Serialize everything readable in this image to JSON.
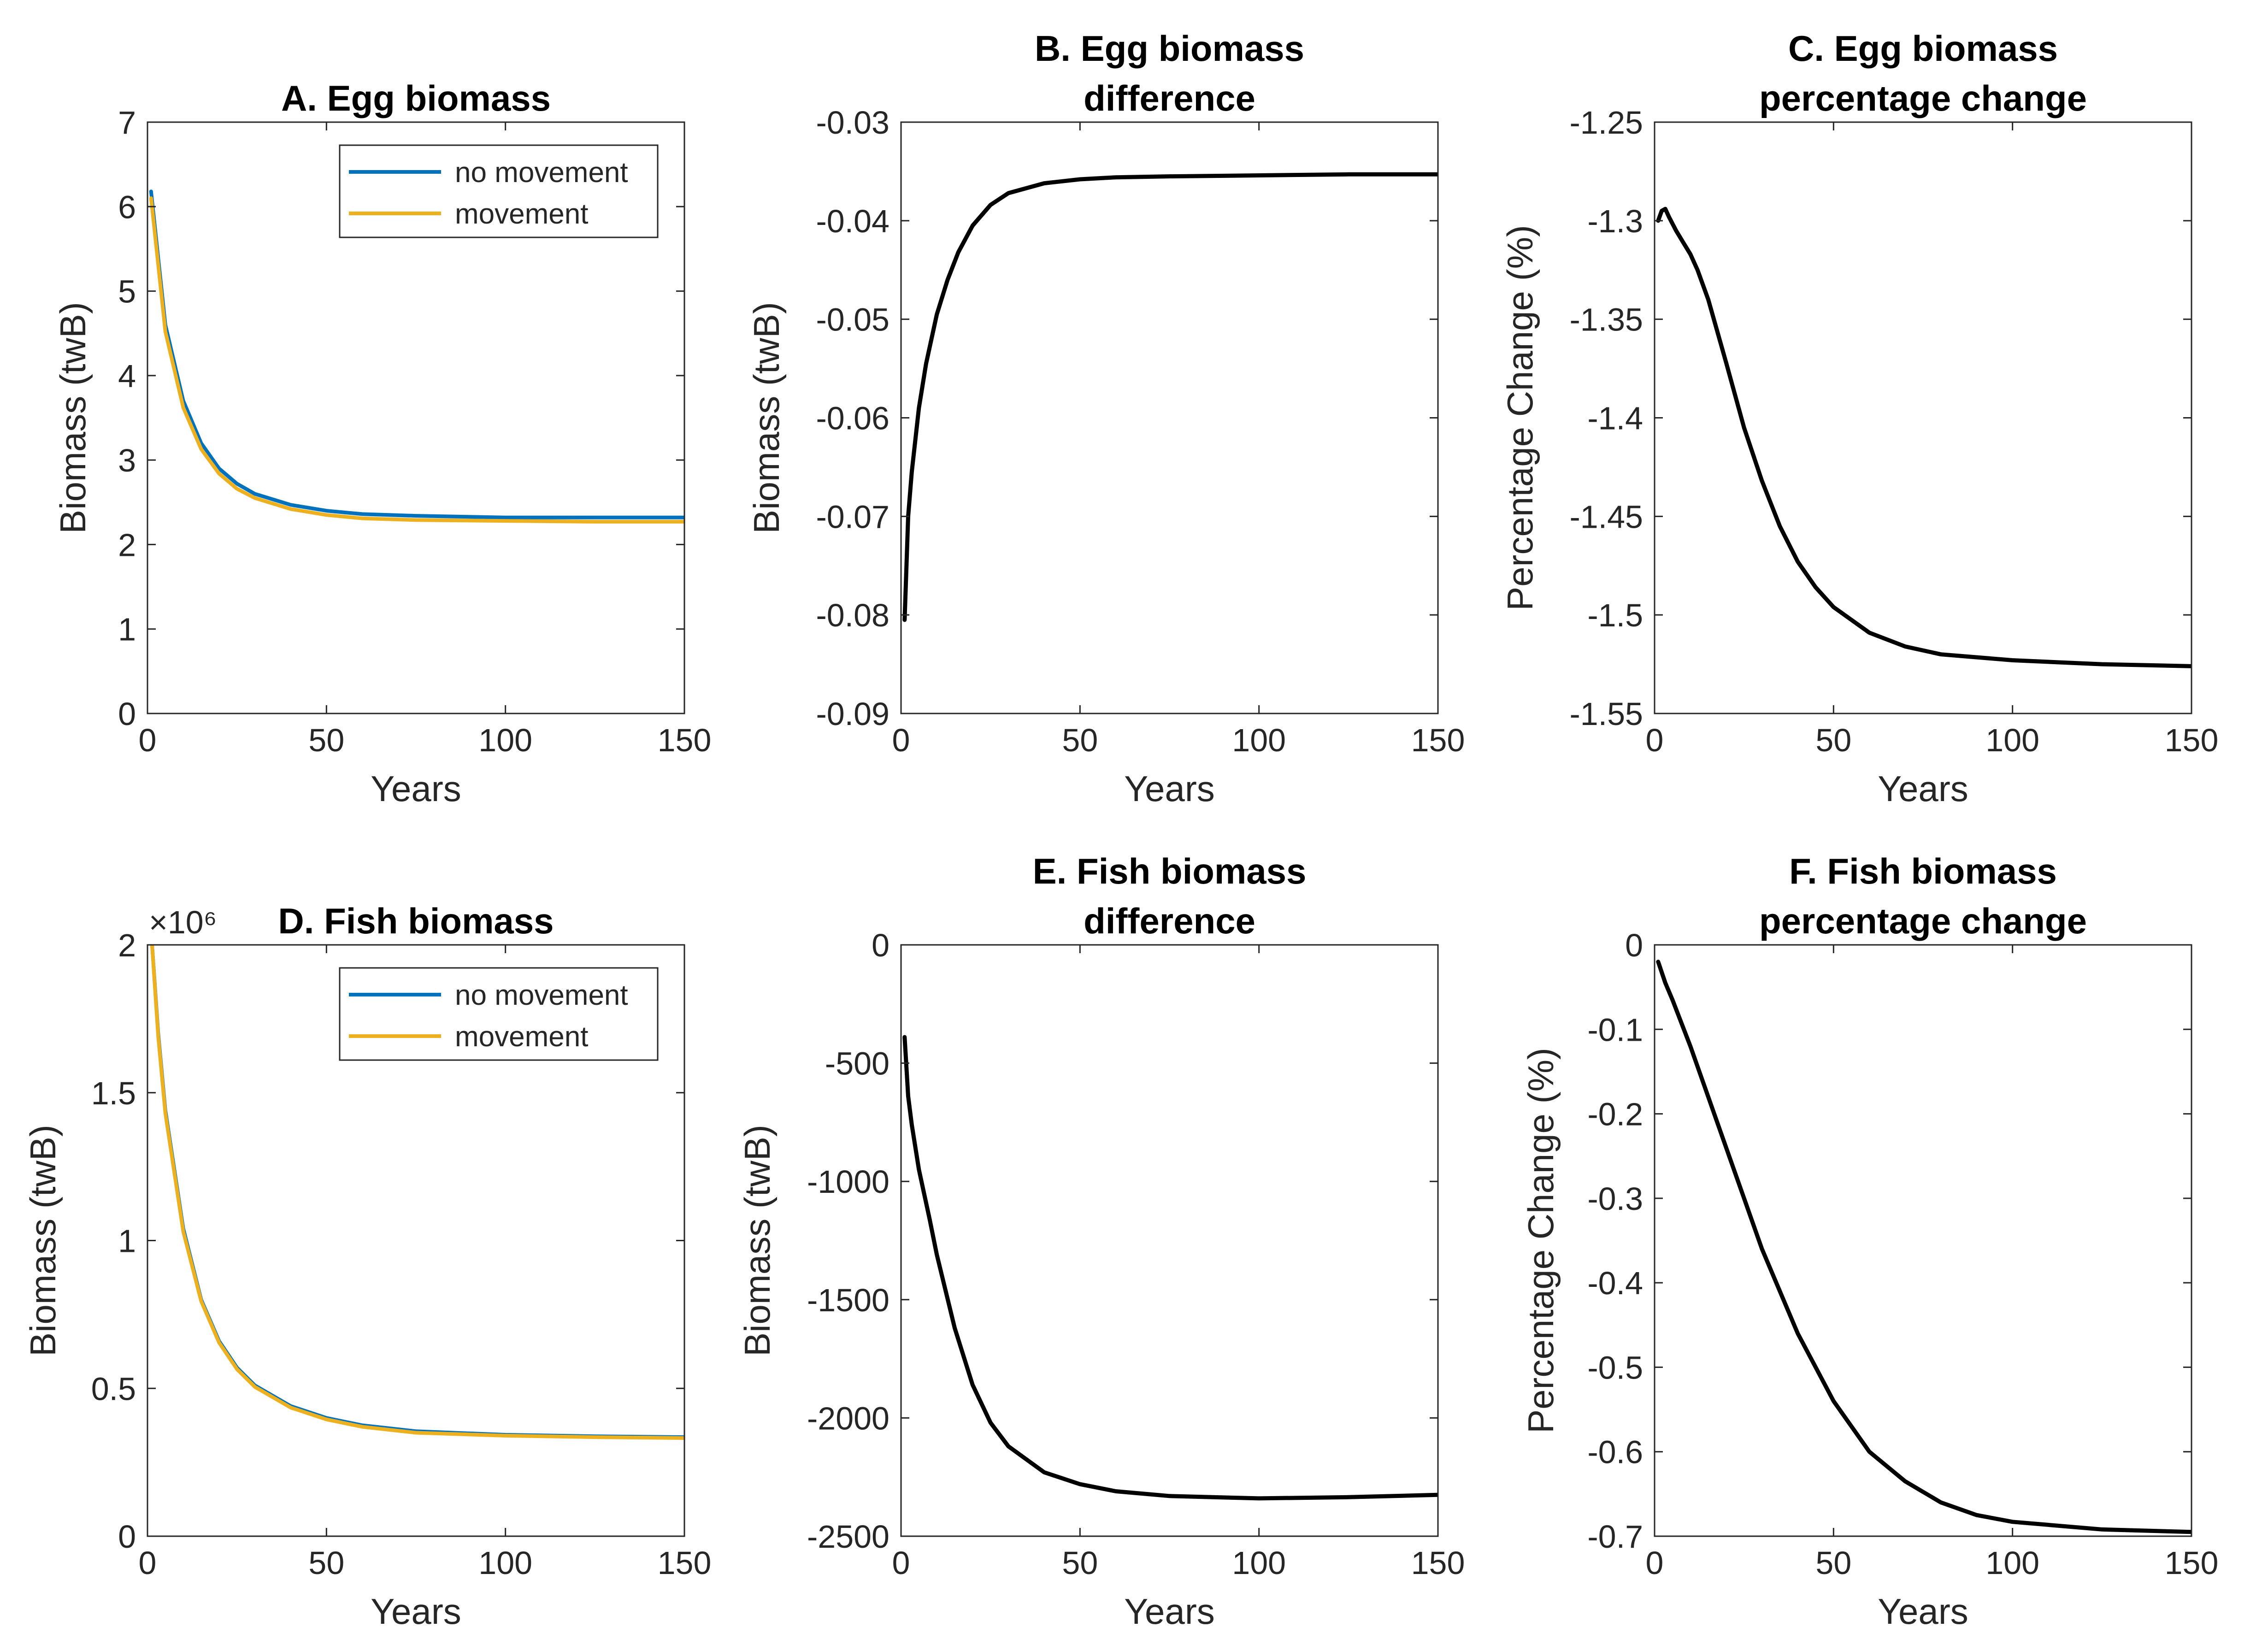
{
  "figure": {
    "panels": [
      {
        "id": "A",
        "title_lines": [
          "A. Egg biomass"
        ],
        "xlabel": "Years",
        "ylabel": "Biomass (twB)",
        "exponent": "",
        "xlim": [
          0,
          150
        ],
        "ylim": [
          0,
          7
        ],
        "xticks": [
          0,
          50,
          100,
          150
        ],
        "xtick_labels": [
          "0",
          "50",
          "100",
          "150"
        ],
        "yticks": [
          0,
          1,
          2,
          3,
          4,
          5,
          6,
          7
        ],
        "ytick_labels": [
          "0",
          "1",
          "2",
          "3",
          "4",
          "5",
          "6",
          "7"
        ],
        "legend": {
          "position": "top-right",
          "entries": [
            "no movement",
            "movement"
          ]
        },
        "series": [
          {
            "name": "no movement",
            "color": "#0072BD",
            "x": [
              1,
              5,
              10,
              15,
              20,
              25,
              30,
              40,
              50,
              60,
              75,
              100,
              125,
              150
            ],
            "y": [
              6.18,
              4.6,
              3.7,
              3.2,
              2.9,
              2.72,
              2.6,
              2.47,
              2.4,
              2.36,
              2.34,
              2.32,
              2.32,
              2.32
            ]
          },
          {
            "name": "movement",
            "color": "#EDB120",
            "x": [
              1,
              5,
              10,
              15,
              20,
              25,
              30,
              40,
              50,
              60,
              75,
              100,
              125,
              150
            ],
            "y": [
              6.1,
              4.52,
              3.62,
              3.13,
              2.84,
              2.66,
              2.55,
              2.42,
              2.35,
              2.31,
              2.29,
              2.28,
              2.27,
              2.27
            ]
          }
        ]
      },
      {
        "id": "B",
        "title_lines": [
          "B. Egg biomass",
          "difference"
        ],
        "xlabel": "Years",
        "ylabel": "Biomass (twB)",
        "exponent": "",
        "xlim": [
          0,
          150
        ],
        "ylim": [
          -0.09,
          -0.03
        ],
        "xticks": [
          0,
          50,
          100,
          150
        ],
        "xtick_labels": [
          "0",
          "50",
          "100",
          "150"
        ],
        "yticks": [
          -0.09,
          -0.08,
          -0.07,
          -0.06,
          -0.05,
          -0.04,
          -0.03
        ],
        "ytick_labels": [
          "-0.09",
          "-0.08",
          "-0.07",
          "-0.06",
          "-0.05",
          "-0.04",
          "-0.03"
        ],
        "series": [
          {
            "name": "",
            "color": "#000000",
            "x": [
              1,
              2,
              3,
              5,
              7,
              10,
              13,
              16,
              20,
              25,
              30,
              40,
              50,
              60,
              75,
              100,
              125,
              150
            ],
            "y": [
              -0.0805,
              -0.07,
              -0.0655,
              -0.059,
              -0.0545,
              -0.0495,
              -0.046,
              -0.0432,
              -0.0405,
              -0.0384,
              -0.0372,
              -0.0362,
              -0.0358,
              -0.0356,
              -0.0355,
              -0.0354,
              -0.0353,
              -0.0353
            ]
          }
        ]
      },
      {
        "id": "C",
        "title_lines": [
          "C. Egg biomass",
          "percentage change"
        ],
        "xlabel": "Years",
        "ylabel": "Percentage Change (%)",
        "exponent": "",
        "xlim": [
          0,
          150
        ],
        "ylim": [
          -1.55,
          -1.25
        ],
        "xticks": [
          0,
          50,
          100,
          150
        ],
        "xtick_labels": [
          "0",
          "50",
          "100",
          "150"
        ],
        "yticks": [
          -1.55,
          -1.5,
          -1.45,
          -1.4,
          -1.35,
          -1.3,
          -1.25
        ],
        "ytick_labels": [
          "-1.55",
          "-1.5",
          "-1.45",
          "-1.4",
          "-1.35",
          "-1.3",
          "-1.25"
        ],
        "series": [
          {
            "name": "",
            "color": "#000000",
            "x": [
              1,
              2,
              3,
              4,
              6,
              8,
              10,
              12,
              15,
              20,
              25,
              30,
              35,
              40,
              45,
              50,
              60,
              70,
              80,
              100,
              125,
              150
            ],
            "y": [
              -1.3,
              -1.295,
              -1.294,
              -1.298,
              -1.305,
              -1.311,
              -1.317,
              -1.325,
              -1.34,
              -1.372,
              -1.405,
              -1.432,
              -1.455,
              -1.473,
              -1.486,
              -1.496,
              -1.509,
              -1.516,
              -1.52,
              -1.523,
              -1.525,
              -1.526
            ]
          }
        ]
      },
      {
        "id": "D",
        "title_lines": [
          "D. Fish biomass"
        ],
        "xlabel": "Years",
        "ylabel": "Biomass (twB)",
        "exponent": "×10⁶",
        "xlim": [
          0,
          150
        ],
        "ylim": [
          0,
          2.0
        ],
        "xticks": [
          0,
          50,
          100,
          150
        ],
        "xtick_labels": [
          "0",
          "50",
          "100",
          "150"
        ],
        "yticks": [
          0,
          0.5,
          1,
          1.5,
          2
        ],
        "ytick_labels": [
          "0",
          "0.5",
          "1",
          "1.5",
          "2"
        ],
        "legend": {
          "position": "top-right",
          "entries": [
            "no movement",
            "movement"
          ]
        },
        "series": [
          {
            "name": "no movement",
            "color": "#0072BD",
            "x": [
              1,
              3,
              5,
              10,
              15,
              20,
              25,
              30,
              40,
              50,
              60,
              75,
              100,
              125,
              150
            ],
            "y": [
              2.05,
              1.7,
              1.44,
              1.04,
              0.8,
              0.66,
              0.57,
              0.51,
              0.44,
              0.4,
              0.375,
              0.355,
              0.343,
              0.338,
              0.335
            ]
          },
          {
            "name": "movement",
            "color": "#EDB120",
            "x": [
              1,
              3,
              5,
              10,
              15,
              20,
              25,
              30,
              40,
              50,
              60,
              75,
              100,
              125,
              150
            ],
            "y": [
              2.05,
              1.69,
              1.43,
              1.03,
              0.795,
              0.655,
              0.565,
              0.505,
              0.435,
              0.395,
              0.37,
              0.35,
              0.34,
              0.335,
              0.332
            ]
          }
        ]
      },
      {
        "id": "E",
        "title_lines": [
          "E. Fish biomass",
          "difference"
        ],
        "xlabel": "Years",
        "ylabel": "Biomass (twB)",
        "exponent": "",
        "xlim": [
          0,
          150
        ],
        "ylim": [
          -2500,
          0
        ],
        "xticks": [
          0,
          50,
          100,
          150
        ],
        "xtick_labels": [
          "0",
          "50",
          "100",
          "150"
        ],
        "yticks": [
          -2500,
          -2000,
          -1500,
          -1000,
          -500,
          0
        ],
        "ytick_labels": [
          "-2500",
          "-2000",
          "-1500",
          "-1000",
          "-500",
          "0"
        ],
        "series": [
          {
            "name": "",
            "color": "#000000",
            "x": [
              1,
              2,
              3,
              5,
              8,
              10,
              15,
              20,
              25,
              30,
              40,
              50,
              60,
              75,
              100,
              125,
              150
            ],
            "y": [
              -390,
              -640,
              -760,
              -950,
              -1160,
              -1310,
              -1620,
              -1860,
              -2020,
              -2120,
              -2230,
              -2280,
              -2310,
              -2330,
              -2340,
              -2335,
              -2325
            ]
          }
        ]
      },
      {
        "id": "F",
        "title_lines": [
          "F. Fish biomass",
          "percentage change"
        ],
        "xlabel": "Years",
        "ylabel": "Percentage Change (%)",
        "exponent": "",
        "xlim": [
          0,
          150
        ],
        "ylim": [
          -0.7,
          0
        ],
        "xticks": [
          0,
          50,
          100,
          150
        ],
        "xtick_labels": [
          "0",
          "50",
          "100",
          "150"
        ],
        "yticks": [
          -0.7,
          -0.6,
          -0.5,
          -0.4,
          -0.3,
          -0.2,
          -0.1,
          0
        ],
        "ytick_labels": [
          "-0.7",
          "-0.6",
          "-0.5",
          "-0.4",
          "-0.3",
          "-0.2",
          "-0.1",
          "0"
        ],
        "series": [
          {
            "name": "",
            "color": "#000000",
            "x": [
              1,
              3,
              5,
              10,
              15,
              20,
              25,
              30,
              40,
              50,
              60,
              70,
              80,
              90,
              100,
              125,
              150
            ],
            "y": [
              -0.02,
              -0.045,
              -0.065,
              -0.12,
              -0.18,
              -0.24,
              -0.3,
              -0.36,
              -0.46,
              -0.54,
              -0.6,
              -0.635,
              -0.66,
              -0.675,
              -0.683,
              -0.692,
              -0.695
            ]
          }
        ]
      }
    ]
  }
}
